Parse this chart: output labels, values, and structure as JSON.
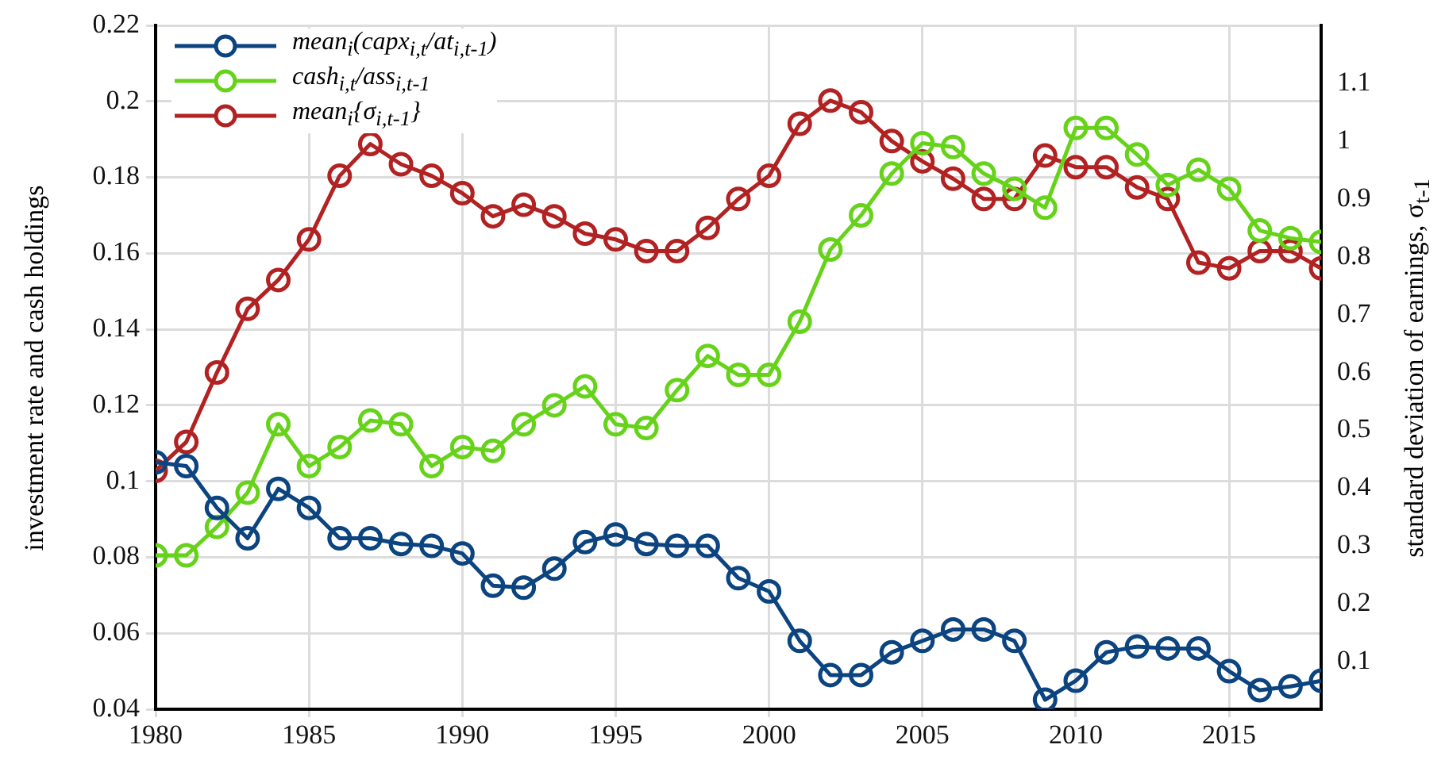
{
  "chart_data": {
    "type": "line",
    "ylabel": "investment rate and cash holdings",
    "y2label": "standard deviation of earnings,  σ$_{t-1}$",
    "x": [
      1980,
      1981,
      1982,
      1983,
      1984,
      1985,
      1986,
      1987,
      1988,
      1989,
      1990,
      1991,
      1992,
      1993,
      1994,
      1995,
      1996,
      1997,
      1998,
      1999,
      2000,
      2001,
      2002,
      2003,
      2004,
      2005,
      2006,
      2007,
      2008,
      2009,
      2010,
      2011,
      2012,
      2013,
      2014,
      2015,
      2016,
      2017,
      2018
    ],
    "xlim": [
      1980,
      2018
    ],
    "xticks": [
      1980,
      1985,
      1990,
      1995,
      2000,
      2005,
      2010,
      2015
    ],
    "ylim": [
      0.04,
      0.22
    ],
    "yticks": [
      0.04,
      0.06,
      0.08,
      0.1,
      0.12,
      0.14,
      0.16,
      0.18,
      0.2,
      0.22
    ],
    "y2lim": [
      0.018,
      1.2
    ],
    "y2ticks": [
      0.1,
      0.2,
      0.3,
      0.4,
      0.5,
      0.6,
      0.7,
      0.8,
      0.9,
      1,
      1.1
    ],
    "grid": true,
    "legend": "top left",
    "marker": "circle",
    "line_style": "solid",
    "series": [
      {
        "name": "mean$_{i}$(capx$_{i,t}$/at$_{i,t-1}$)",
        "color": "#0c4480",
        "values": [
          0.105,
          0.104,
          0.093,
          0.085,
          0.098,
          0.093,
          0.085,
          0.085,
          0.0835,
          0.083,
          0.081,
          0.0725,
          0.072,
          0.077,
          0.084,
          0.086,
          0.0835,
          0.083,
          0.083,
          0.0745,
          0.071,
          0.058,
          0.049,
          0.049,
          0.055,
          0.058,
          0.061,
          0.061,
          0.058,
          0.0425,
          0.0475,
          0.055,
          0.0565,
          0.056,
          0.056,
          0.05,
          0.045,
          0.046,
          0.0475
        ]
      },
      {
        "name": "cash$_{i,t}$/ass$_{i,t-1}$",
        "color": "#66d31a",
        "values": [
          0.0805,
          0.0805,
          0.088,
          0.097,
          0.115,
          0.104,
          0.109,
          0.116,
          0.115,
          0.104,
          0.109,
          0.108,
          0.115,
          0.12,
          0.125,
          0.115,
          0.114,
          0.124,
          0.133,
          0.128,
          0.128,
          0.142,
          0.161,
          0.17,
          0.181,
          0.189,
          0.188,
          0.181,
          0.177,
          0.172,
          0.193,
          0.193,
          0.186,
          0.178,
          0.182,
          0.177,
          0.166,
          0.164,
          0.163
        ]
      },
      {
        "name": "mean$_{i}${σ$_{i,t-1}$}",
        "color": "#b22222",
        "axis": "y2",
        "values": [
          0.43,
          0.48,
          0.6,
          0.71,
          0.76,
          0.83,
          0.94,
          0.995,
          0.96,
          0.94,
          0.91,
          0.87,
          0.89,
          0.87,
          0.84,
          0.83,
          0.81,
          0.81,
          0.85,
          0.9,
          0.94,
          1.03,
          1.07,
          1.05,
          1,
          0.965,
          0.935,
          0.9,
          0.9,
          0.975,
          0.955,
          0.955,
          0.92,
          0.9,
          0.79,
          0.78,
          0.81,
          0.81,
          0.78
        ]
      }
    ]
  }
}
